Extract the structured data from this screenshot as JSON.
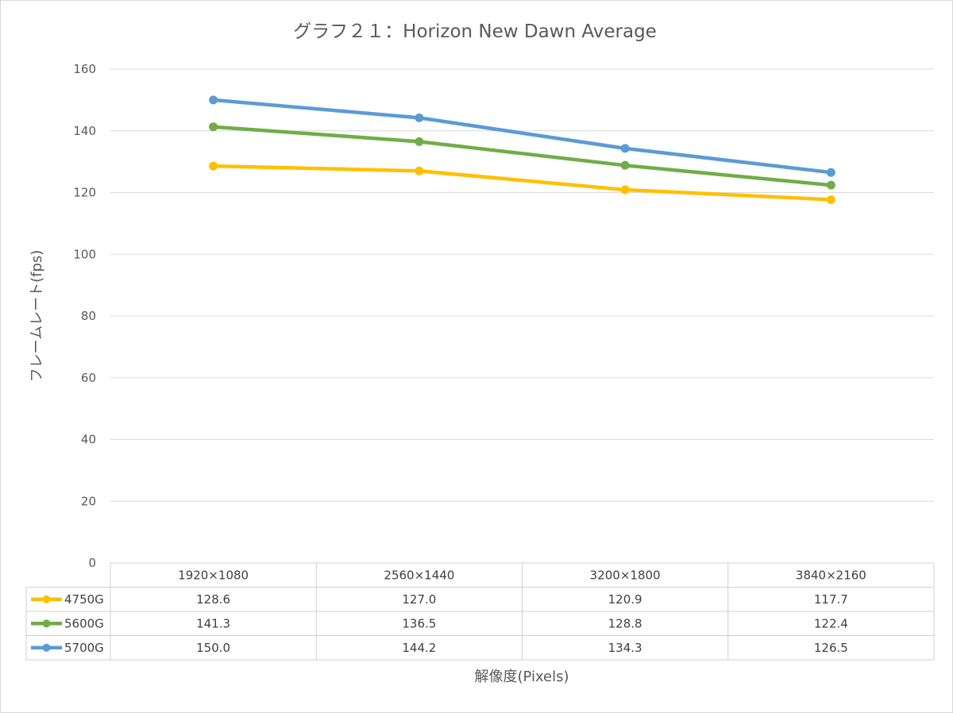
{
  "chart_data": {
    "type": "line",
    "title": "グラフ２１：Horizon New Dawn Average",
    "xlabel": "解像度(Pixels)",
    "ylabel": "フレームレート(fps)",
    "ylim": [
      0,
      160
    ],
    "yticks": [
      0,
      20,
      40,
      60,
      80,
      100,
      120,
      140,
      160
    ],
    "grid": true,
    "legend_placement": "data-table",
    "categories": [
      "1920×1080",
      "2560×1440",
      "3200×1800",
      "3840×2160"
    ],
    "series": [
      {
        "name": "4750G",
        "color": "#FFC000",
        "values": [
          128.6,
          127.0,
          120.9,
          117.7
        ]
      },
      {
        "name": "5600G",
        "color": "#70AD47",
        "values": [
          141.3,
          136.5,
          128.8,
          122.4
        ]
      },
      {
        "name": "5700G",
        "color": "#5B9BD5",
        "values": [
          150.0,
          144.2,
          134.3,
          126.5
        ]
      }
    ]
  }
}
